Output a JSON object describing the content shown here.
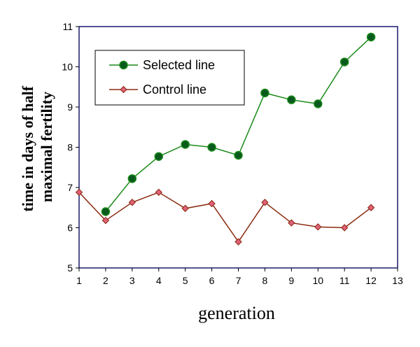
{
  "chart_data": {
    "type": "line",
    "xlabel": "generation",
    "ylabel_lines": [
      "time in days of half",
      "maximal fertility"
    ],
    "xlim": [
      1,
      13
    ],
    "ylim": [
      5,
      11
    ],
    "x_ticks": [
      1,
      2,
      3,
      4,
      5,
      6,
      7,
      8,
      9,
      10,
      11,
      12,
      13
    ],
    "y_ticks": [
      5,
      6,
      7,
      8,
      9,
      10,
      11
    ],
    "grid": false,
    "legend_position": "top-left",
    "series": [
      {
        "name": "Selected line",
        "marker": "circle",
        "color": "#1a8a1a",
        "marker_fill": "#0a5a1e",
        "x": [
          2,
          3,
          4,
          5,
          6,
          7,
          8,
          9,
          10,
          11,
          12
        ],
        "y": [
          6.4,
          7.22,
          7.77,
          8.07,
          8.0,
          7.8,
          9.35,
          9.18,
          9.08,
          10.12,
          10.74
        ]
      },
      {
        "name": "Control line",
        "marker": "diamond",
        "color": "#8b2a10",
        "marker_fill": "#e0607a",
        "x": [
          1,
          2,
          3,
          4,
          5,
          6,
          7,
          8,
          9,
          10,
          11,
          12
        ],
        "y": [
          6.88,
          6.18,
          6.63,
          6.88,
          6.48,
          6.6,
          5.65,
          6.63,
          6.12,
          6.02,
          6.0,
          6.5
        ]
      }
    ]
  }
}
